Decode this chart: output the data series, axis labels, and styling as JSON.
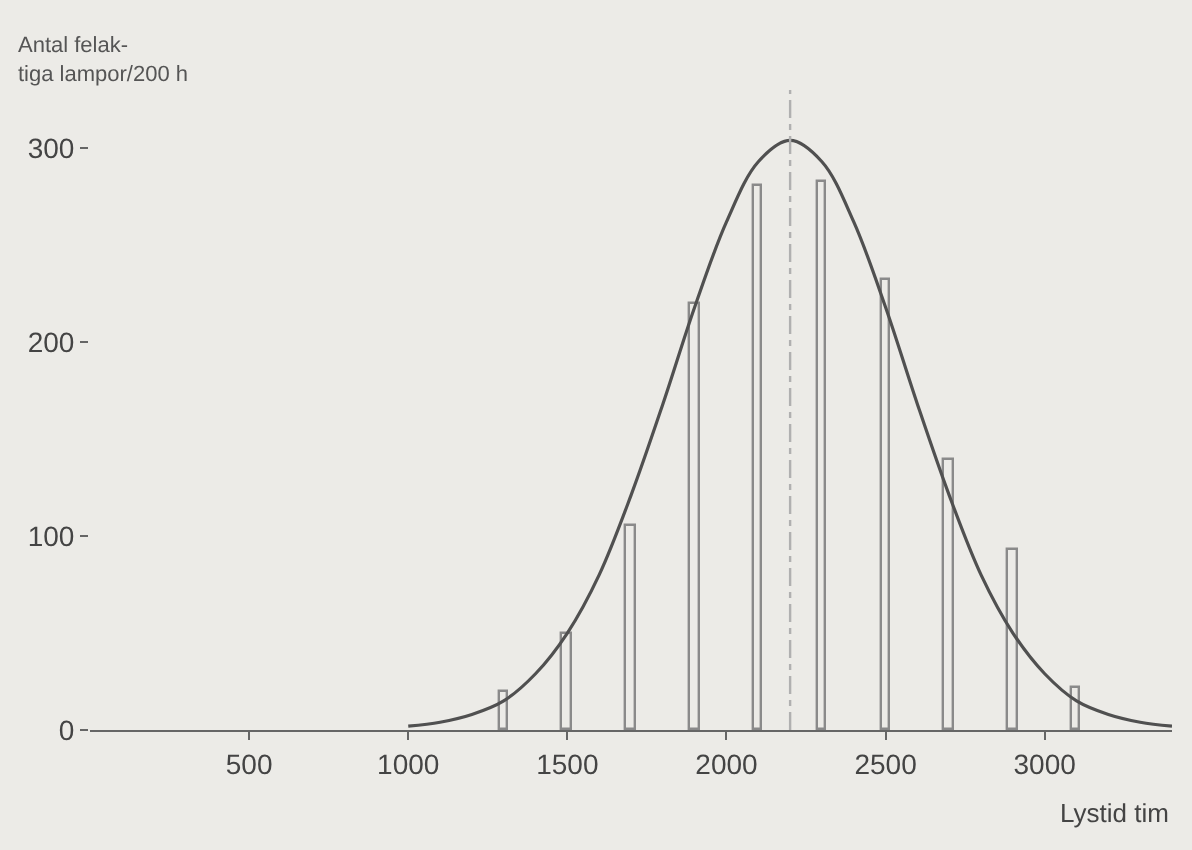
{
  "chart_data": {
    "type": "bar",
    "xlabel": "Lystid tim",
    "ylabel": "Antal felak-\ntiga lampor/200 h",
    "xlim": [
      0,
      3400
    ],
    "xticks": [
      500,
      1000,
      1500,
      2000,
      2500,
      3000
    ],
    "ylim": [
      0,
      330
    ],
    "yticks": [
      0,
      100,
      200,
      300
    ],
    "grid": false,
    "series": [
      {
        "color": "#8a8a8a",
        "x": [
          1300,
          1500,
          1700,
          1900,
          2100,
          2300,
          2500,
          2700,
          2900,
          3100
        ],
        "values": [
          20,
          50,
          105,
          220,
          280,
          283,
          232,
          139,
          93,
          22
        ]
      },
      {
        "type": "line",
        "color": "#505050",
        "x": [
          1000,
          1100,
          1200,
          1300,
          1400,
          1500,
          1600,
          1700,
          1800,
          1900,
          2000,
          2100,
          2200,
          2300,
          2400,
          2500,
          2600,
          2700,
          2800,
          2900,
          3000,
          3100,
          3200,
          3300,
          3400
        ],
        "values": [
          2,
          4,
          8,
          15,
          29,
          50,
          80,
          121,
          168,
          218,
          262,
          293,
          304,
          293,
          262,
          218,
          168,
          121,
          80,
          50,
          29,
          15,
          8,
          4,
          2
        ]
      }
    ],
    "ref_lines": [
      {
        "axis": "x",
        "value": 2200,
        "label": null,
        "color": "#b0b0b0",
        "line_style": "dashed"
      }
    ]
  }
}
